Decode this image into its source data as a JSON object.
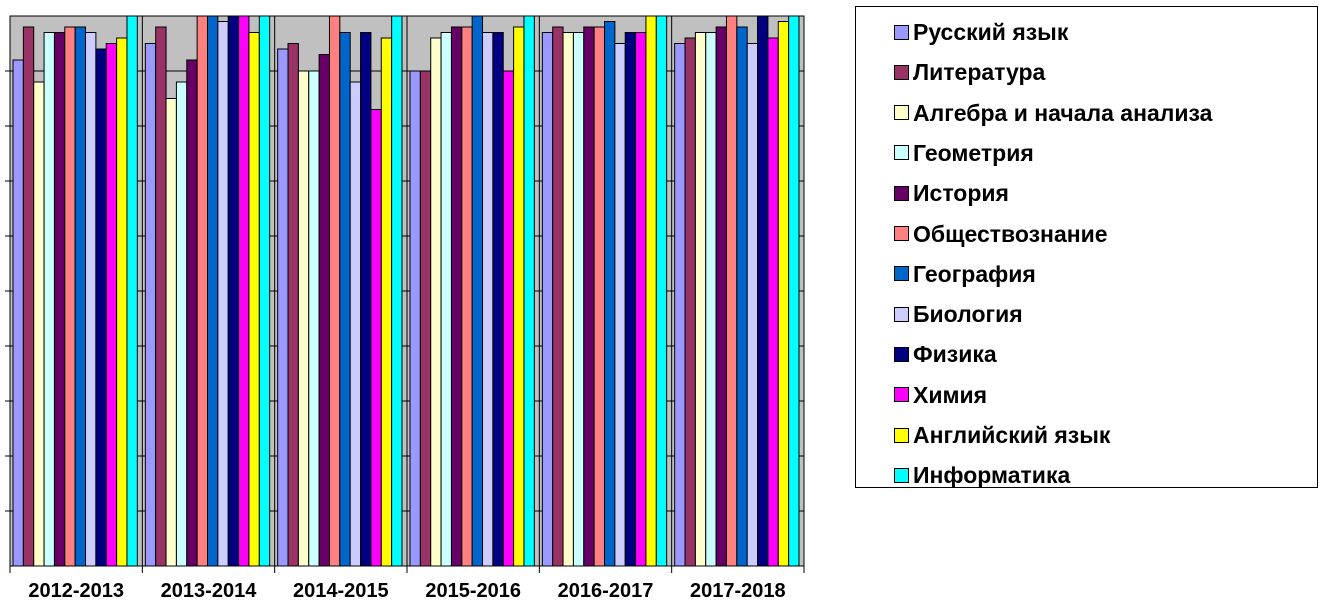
{
  "chart_data": {
    "type": "bar",
    "title": "",
    "xlabel": "",
    "ylabel": "",
    "ylim": [
      0,
      100
    ],
    "grid": true,
    "legend_position": "right",
    "plot_background": "#c0c0c0",
    "categories": [
      "2012-2013",
      "2013-2014",
      "2014-2015",
      "2015-2016",
      "2016-2017",
      "2017-2018"
    ],
    "series": [
      {
        "name": "Русский язык",
        "color": "#9999ff",
        "values": [
          92,
          95,
          94,
          90,
          97,
          95
        ]
      },
      {
        "name": "Литература",
        "color": "#993366",
        "values": [
          98,
          98,
          95,
          90,
          98,
          96
        ]
      },
      {
        "name": "Алгебра и начала анализа",
        "color": "#ffffcc",
        "values": [
          88,
          85,
          90,
          96,
          97,
          97
        ]
      },
      {
        "name": "Геометрия",
        "color": "#ccffff",
        "values": [
          97,
          88,
          90,
          97,
          97,
          97
        ]
      },
      {
        "name": "История",
        "color": "#660066",
        "values": [
          97,
          92,
          93,
          98,
          98,
          98
        ]
      },
      {
        "name": "Обществознание",
        "color": "#ff8080",
        "values": [
          98,
          100,
          100,
          98,
          98,
          100
        ]
      },
      {
        "name": "География",
        "color": "#0066cc",
        "values": [
          98,
          100,
          97,
          100,
          99,
          98
        ]
      },
      {
        "name": "Биология",
        "color": "#ccccff",
        "values": [
          97,
          99,
          88,
          97,
          95,
          95
        ]
      },
      {
        "name": "Физика",
        "color": "#000080",
        "values": [
          94,
          100,
          97,
          97,
          97,
          100
        ]
      },
      {
        "name": "Химия",
        "color": "#ff00ff",
        "values": [
          95,
          100,
          83,
          90,
          97,
          96
        ]
      },
      {
        "name": "Английский язык",
        "color": "#ffff00",
        "values": [
          96,
          97,
          96,
          98,
          100,
          99
        ]
      },
      {
        "name": "Информатика",
        "color": "#00ffff",
        "values": [
          100,
          100,
          100,
          100,
          100,
          100
        ]
      }
    ]
  }
}
